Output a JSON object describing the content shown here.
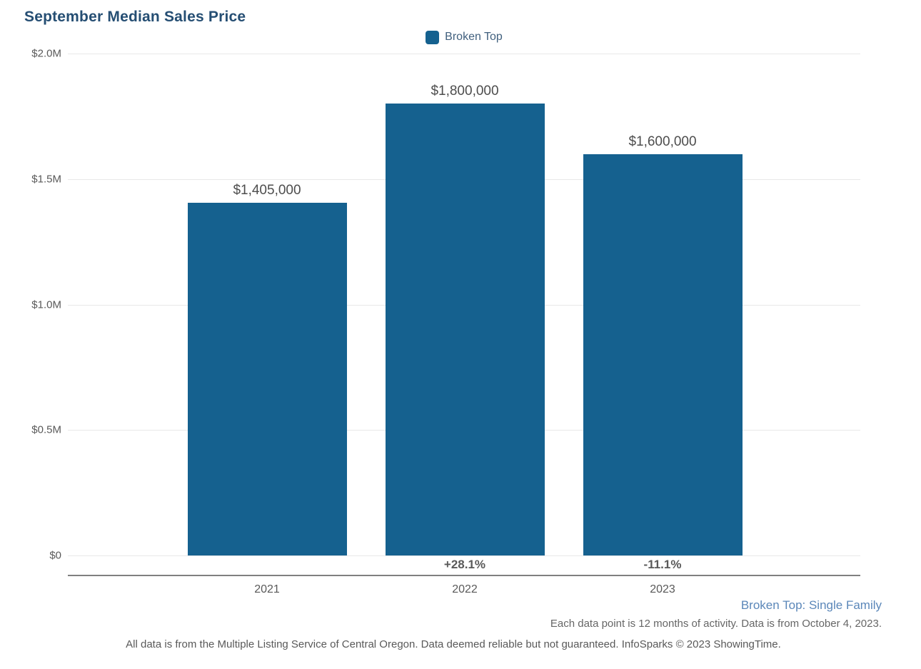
{
  "title": "September Median Sales Price",
  "legend": {
    "label": "Broken Top",
    "swatch_color": "#15618f"
  },
  "chart_data": {
    "type": "bar",
    "title": "September Median Sales Price",
    "categories": [
      "2021",
      "2022",
      "2023"
    ],
    "values": [
      1405000,
      1800000,
      1600000
    ],
    "value_labels": [
      "$1,405,000",
      "$1,800,000",
      "$1,600,000"
    ],
    "pct_change_labels": [
      "",
      "+28.1%",
      "-11.1%"
    ],
    "series_name": "Broken Top",
    "bar_color": "#15618f",
    "xlabel": "",
    "ylabel": "",
    "ylim": [
      0,
      2000000
    ],
    "yticks": [
      0,
      500000,
      1000000,
      1500000,
      2000000
    ],
    "ytick_labels": [
      "$0",
      "$0.5M",
      "$1.0M",
      "$1.5M",
      "$2.0M"
    ],
    "grid": true,
    "legend_position": "top"
  },
  "footer": {
    "series_note": "Broken Top: Single Family",
    "data_note": "Each data point is 12 months of activity. Data is from October 4, 2023.",
    "disclaimer": "All data is from the Multiple Listing Service of Central Oregon. Data deemed reliable but not guaranteed. InfoSparks © 2023 ShowingTime."
  },
  "colors": {
    "title": "#254e73",
    "bar": "#15618f",
    "gridline": "#e8e8e8",
    "axis_line": "#808080",
    "tick_text": "#595959",
    "value_text": "#4d4d4d",
    "series_note_text": "#5b87b9",
    "footnote_text": "#666666"
  }
}
